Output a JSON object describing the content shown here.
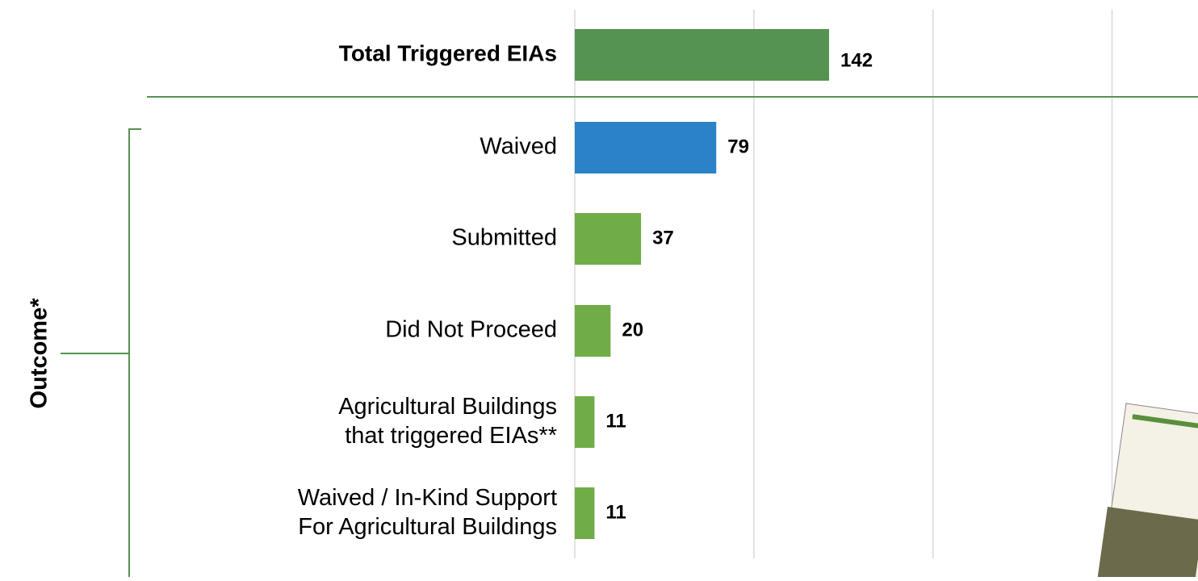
{
  "chart_data": {
    "type": "bar",
    "orientation": "horizontal",
    "categories": [
      "Total Triggered EIAs",
      "Waived",
      "Submitted",
      "Did Not Proceed",
      "Agricultural Buildings\nthat triggered EIAs**",
      "Waived / In-Kind Support\nFor Agricultural Buildings"
    ],
    "values": [
      142,
      79,
      37,
      20,
      11,
      11
    ],
    "colors": [
      "#559350",
      "#2a83c6",
      "#70ad47",
      "#70ad47",
      "#70ad47",
      "#70ad47"
    ],
    "group_label": "Outcome*",
    "xlim": [
      0,
      348
    ],
    "xticks": [
      0,
      100,
      200,
      300
    ],
    "grid": true
  }
}
